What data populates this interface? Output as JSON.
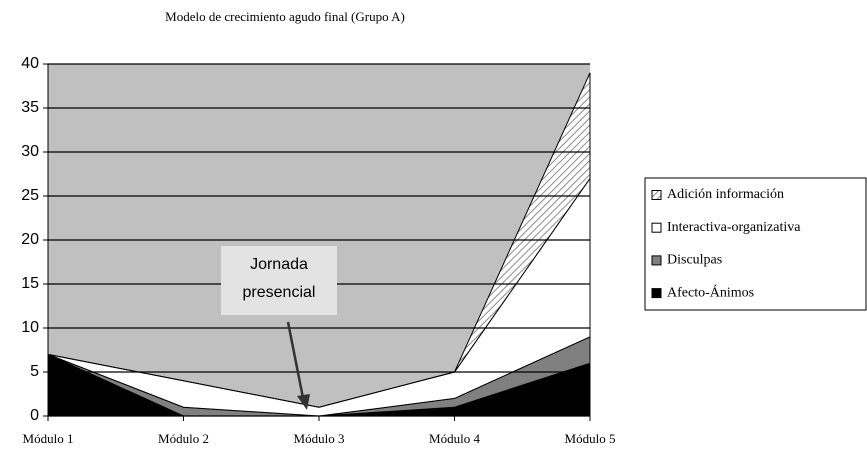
{
  "chart_data": {
    "type": "stacked-area",
    "title": "Modelo de crecimiento agudo final (Grupo A)",
    "categories": [
      "Módulo 1",
      "Módulo 2",
      "Módulo 3",
      "Módulo 4",
      "Módulo 5"
    ],
    "series": [
      {
        "name": "Afecto-Ánimos",
        "color": "#000000",
        "values": [
          7,
          0,
          0,
          1,
          6
        ]
      },
      {
        "name": "Disculpas",
        "color": "#808080",
        "values": [
          0,
          1,
          0,
          1,
          3
        ]
      },
      {
        "name": "Interactiva-organizativa",
        "color": "#ffffff",
        "values": [
          0,
          3,
          1,
          3,
          18
        ]
      },
      {
        "name": "Adición información",
        "color": "#8c8c8c",
        "hatched": true,
        "values": [
          0,
          0,
          0,
          0,
          12
        ]
      }
    ],
    "ylim": [
      0,
      40
    ],
    "yticks": [
      0,
      5,
      10,
      15,
      20,
      25,
      30,
      35,
      40
    ],
    "grid": true,
    "plot_background": "#c0c0c0",
    "annotation": {
      "lines": [
        "Jornada",
        "presencial"
      ],
      "category": 2
    }
  }
}
